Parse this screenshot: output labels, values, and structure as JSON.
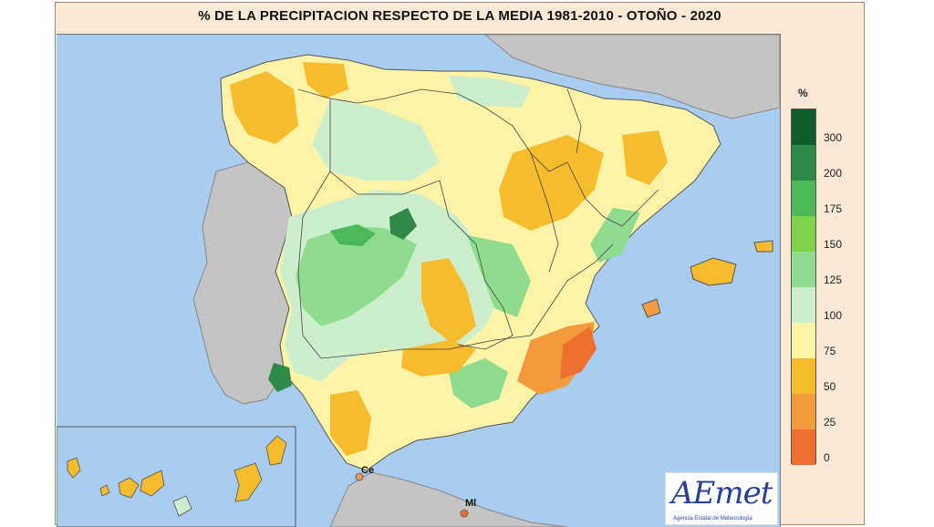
{
  "title": "% DE LA PRECIPITACION RESPECTO DE LA MEDIA 1981-2010 - OTOÑO - 2020",
  "legend": {
    "unit": "%",
    "classes": [
      {
        "label": "300",
        "color": "#0f5e2a"
      },
      {
        "label": "200",
        "color": "#2f8a4a"
      },
      {
        "label": "175",
        "color": "#4cb85a"
      },
      {
        "label": "150",
        "color": "#7fd24a"
      },
      {
        "label": "125",
        "color": "#8fdc8f"
      },
      {
        "label": "100",
        "color": "#cdeecd"
      },
      {
        "label": "75",
        "color": "#fdf3a6"
      },
      {
        "label": "50",
        "color": "#f7bb2e"
      },
      {
        "label": "25",
        "color": "#f39a3c"
      },
      {
        "label": "0",
        "color": "#ef6f2f"
      }
    ]
  },
  "cities": [
    {
      "label": "Ce"
    },
    {
      "label": "Ml"
    }
  ],
  "logo": {
    "text": "AEmet",
    "subtitle": "Agencia Estatal de Meteorología"
  },
  "colors": {
    "sea": "#a9cdf0",
    "land_other": "#c4c4c4",
    "frame": "#fbe9d8"
  }
}
